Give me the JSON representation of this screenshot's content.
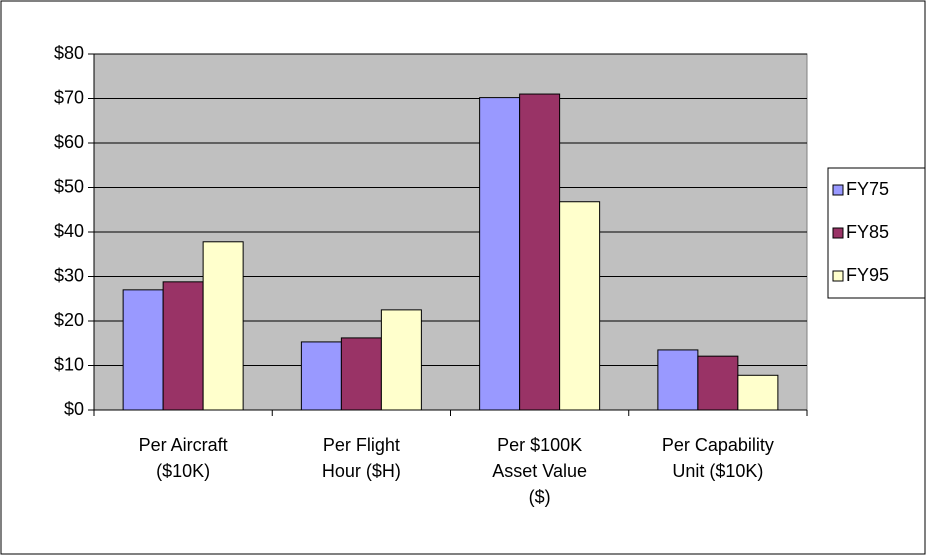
{
  "chart_data": {
    "type": "bar",
    "categories": [
      "Per Aircraft\n($10K)",
      "Per Flight\nHour ($H)",
      "Per $100K\nAsset Value\n($)",
      "Per Capability\nUnit ($10K)"
    ],
    "series": [
      {
        "name": "FY75",
        "color": "#9999ff",
        "values": [
          27,
          15.3,
          70.2,
          13.5
        ]
      },
      {
        "name": "FY85",
        "color": "#993366",
        "values": [
          28.8,
          16.2,
          71,
          12.1
        ]
      },
      {
        "name": "FY95",
        "color": "#ffffcc",
        "values": [
          37.8,
          22.5,
          46.8,
          7.8
        ]
      }
    ],
    "ylim": [
      0,
      80
    ],
    "yticks": [
      {
        "value": 0,
        "label": "$0"
      },
      {
        "value": 10,
        "label": "$10"
      },
      {
        "value": 20,
        "label": "$20"
      },
      {
        "value": 30,
        "label": "$30"
      },
      {
        "value": 40,
        "label": "$40"
      },
      {
        "value": 50,
        "label": "$50"
      },
      {
        "value": 60,
        "label": "$60"
      },
      {
        "value": 70,
        "label": "$70"
      },
      {
        "value": 80,
        "label": "$80"
      }
    ],
    "grid": true,
    "legend": "right",
    "plot_background": "#c0c0c0"
  }
}
